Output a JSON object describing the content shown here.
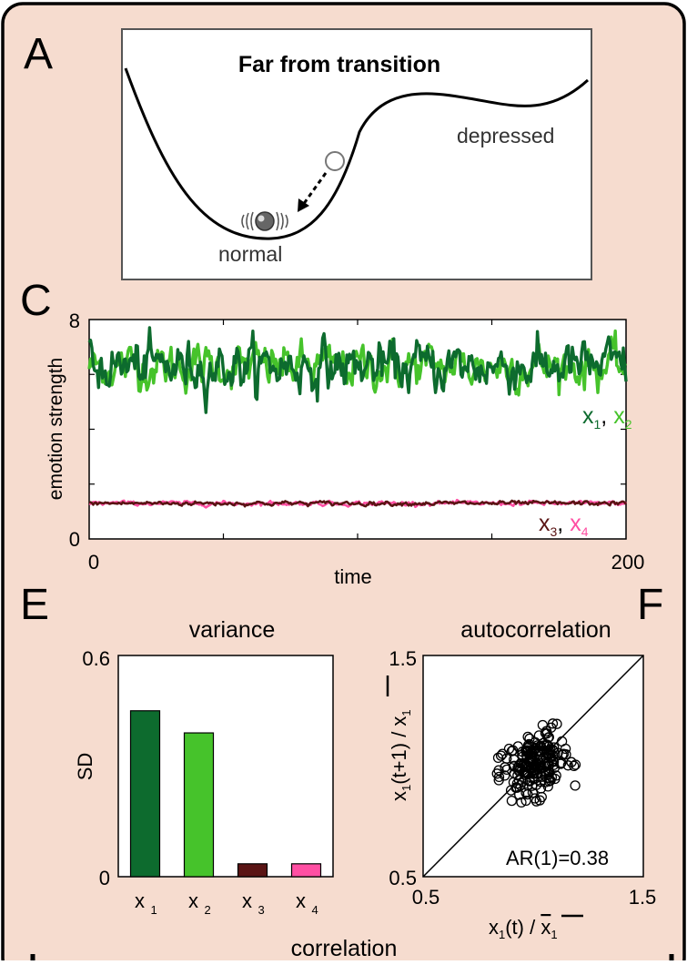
{
  "panel_labels": {
    "A": "A",
    "C": "C",
    "E": "E",
    "F": "F"
  },
  "colors": {
    "background": "#f6dccf",
    "x1": "#0d6b2e",
    "x2": "#46c32b",
    "x3": "#5a1414",
    "x4": "#ff4fa3"
  },
  "landscape": {
    "title": "Far from transition",
    "label_depressed": "depressed",
    "label_normal": "normal"
  },
  "chart_data": [
    {
      "type": "line",
      "panel": "C",
      "xlabel": "time",
      "ylabel": "emotion strength",
      "xlim": [
        0,
        200
      ],
      "ylim": [
        0,
        8
      ],
      "xticks": [
        0,
        200
      ],
      "yticks": [
        0,
        8
      ],
      "series": [
        {
          "name": "x1",
          "mean": 6.3,
          "sd": 0.45
        },
        {
          "name": "x2",
          "mean": 6.3,
          "sd": 0.4
        },
        {
          "name": "x3",
          "mean": 1.3,
          "sd": 0.04
        },
        {
          "name": "x4",
          "mean": 1.3,
          "sd": 0.04
        }
      ],
      "legend_top": {
        "a": "x",
        "a_sub": "1",
        "sep": ", ",
        "b": "x",
        "b_sub": "2"
      },
      "legend_bottom": {
        "a": "x",
        "a_sub": "3",
        "sep": ", ",
        "b": "x",
        "b_sub": "4"
      }
    },
    {
      "type": "bar",
      "panel": "E",
      "title": "variance",
      "ylabel": "SD",
      "ylim": [
        0,
        0.6
      ],
      "yticks": [
        "0",
        "0.6"
      ],
      "categories": [
        {
          "main": "x",
          "sub": "1"
        },
        {
          "main": "x",
          "sub": "2"
        },
        {
          "main": "x",
          "sub": "3"
        },
        {
          "main": "x",
          "sub": "4"
        }
      ],
      "values": [
        0.45,
        0.39,
        0.035,
        0.035
      ]
    },
    {
      "type": "scatter",
      "panel": "F",
      "title": "autocorrelation",
      "xlim": [
        0.5,
        1.5
      ],
      "ylim": [
        0.5,
        1.5
      ],
      "xticks": [
        "0.5",
        "1.5"
      ],
      "yticks": [
        "0.5",
        "1.5"
      ],
      "xlabel": {
        "main": "x",
        "sub": "1",
        "rest": "(t) / ",
        "bar": "x",
        "bar_sub": "1"
      },
      "ylabel": {
        "main": "x",
        "sub": "1",
        "rest": "(t+1) / ",
        "bar": "x",
        "bar_sub": "1"
      },
      "annotation": "AR(1)=0.38",
      "center": [
        1.0,
        1.0
      ],
      "sd": 0.08,
      "ar1": 0.38,
      "n_points": 200
    }
  ],
  "footer": {
    "correlation_label": "correlation"
  }
}
